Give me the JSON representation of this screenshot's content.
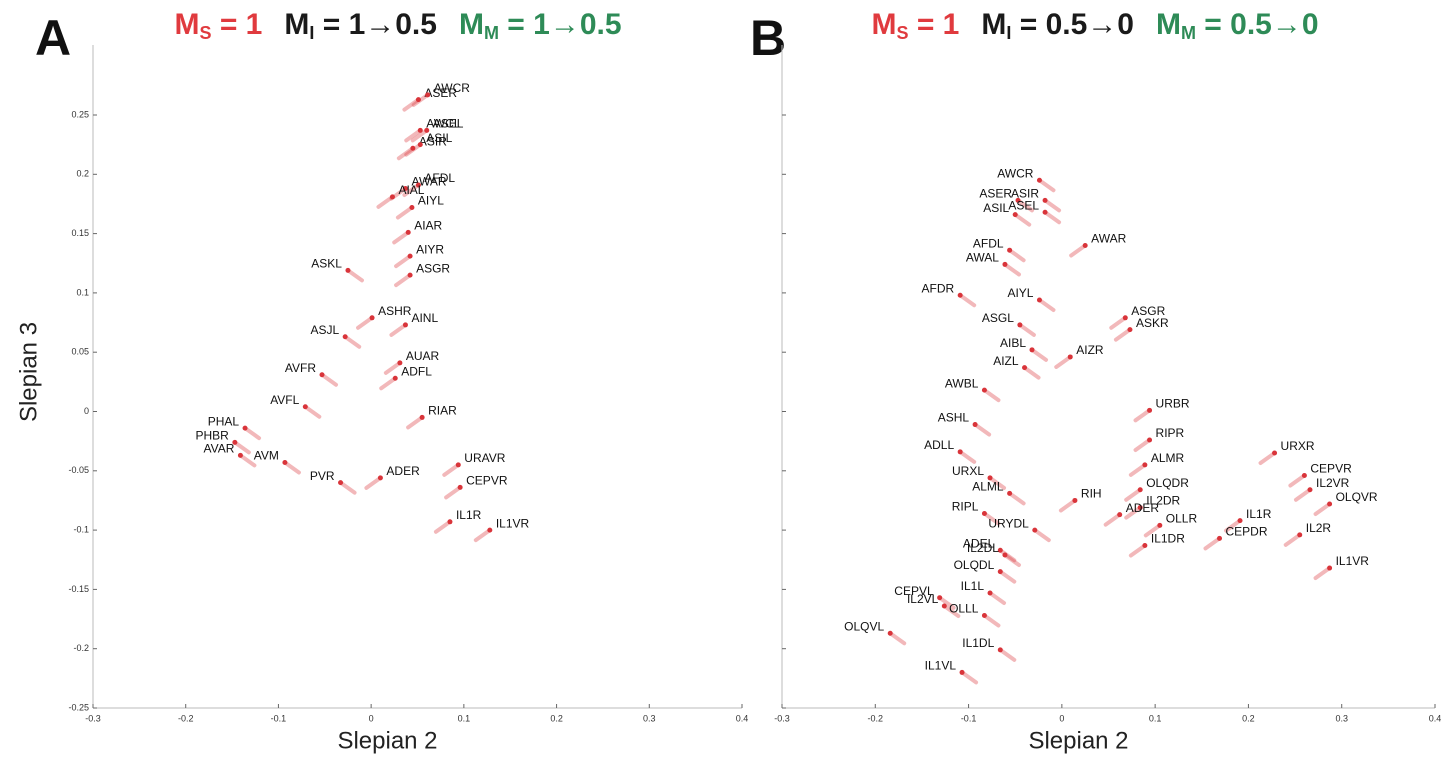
{
  "chart_data": [
    {
      "type": "scatter",
      "panel_label": "A",
      "title": [
        {
          "text": "M",
          "sub": "S",
          "rest": " = 1",
          "color": "#e03a3e"
        },
        {
          "text": "M",
          "sub": "I",
          "rest": " = 1→0.5",
          "color": "#1a1a1a"
        },
        {
          "text": "M",
          "sub": "M",
          "rest": " = 1→0.5",
          "color": "#2e8b57"
        }
      ],
      "xlabel": "Slepian 2",
      "ylabel": "Slepian 3",
      "xlim": [
        -0.3,
        0.4
      ],
      "ylim": [
        -0.25,
        0.25
      ],
      "xticks": [
        -0.3,
        -0.2,
        -0.1,
        0,
        0.1,
        0.2,
        0.3,
        0.4
      ],
      "yticks": [
        -0.25,
        -0.2,
        -0.15,
        -0.1,
        -0.05,
        0,
        0.05,
        0.1,
        0.15,
        0.2,
        0.25
      ],
      "show_ytick_labels": true,
      "color": "#d9343a",
      "labels": [
        "ASER",
        "AWCR",
        "AWCL",
        "ASEL",
        "ASIR",
        "ASIL",
        "AWAR",
        "AFDL",
        "AIAL",
        "AIYL",
        "AIAR",
        "ASKL",
        "AIYR",
        "ASGR",
        "ASHR",
        "AINL",
        "ASJL",
        "AUAR",
        "ADFL",
        "AVFR",
        "AVFL",
        "RIAR",
        "PHAL",
        "PHBR",
        "AVAR",
        "AVM",
        "PVR",
        "ADER",
        "URAVR",
        "CEPVR",
        "IL1R",
        "IL1VR"
      ],
      "x": [
        0.051,
        0.061,
        0.053,
        0.06,
        0.045,
        0.053,
        0.037,
        0.051,
        0.023,
        0.044,
        0.04,
        -0.025,
        0.042,
        0.042,
        0.001,
        0.037,
        -0.028,
        0.031,
        0.026,
        -0.053,
        -0.071,
        0.055,
        -0.136,
        -0.147,
        -0.141,
        -0.093,
        -0.033,
        0.01,
        0.094,
        0.096,
        0.085,
        0.128
      ],
      "y": [
        0.263,
        0.267,
        0.237,
        0.237,
        0.222,
        0.225,
        0.188,
        0.191,
        0.181,
        0.172,
        0.151,
        0.119,
        0.131,
        0.115,
        0.079,
        0.073,
        0.063,
        0.041,
        0.028,
        0.031,
        0.004,
        -0.005,
        -0.014,
        -0.026,
        -0.037,
        -0.043,
        -0.06,
        -0.056,
        -0.045,
        -0.064,
        -0.093,
        -0.1
      ]
    },
    {
      "type": "scatter",
      "panel_label": "B",
      "title": [
        {
          "text": "M",
          "sub": "S",
          "rest": " = 1",
          "color": "#e03a3e"
        },
        {
          "text": "M",
          "sub": "I",
          "rest": " = 0.5→0",
          "color": "#1a1a1a"
        },
        {
          "text": "M",
          "sub": "M",
          "rest": " = 0.5→0",
          "color": "#2e8b57"
        }
      ],
      "xlabel": "Slepian 2",
      "xlim": [
        -0.3,
        0.4
      ],
      "ylim": [
        -0.25,
        0.25
      ],
      "xticks": [
        -0.3,
        -0.2,
        -0.1,
        0,
        0.1,
        0.2,
        0.3,
        0.4
      ],
      "yticks": [
        -0.25,
        -0.2,
        -0.15,
        -0.1,
        -0.05,
        0,
        0.05,
        0.1,
        0.15,
        0.2,
        0.25
      ],
      "show_ytick_labels": false,
      "color": "#d9343a",
      "labels": [
        "AWCR",
        "ASER",
        "ASIR",
        "ASIL",
        "ASEL",
        "AWAR",
        "AFDL",
        "AWAL",
        "AFDR",
        "AIYL",
        "ASGR",
        "ASKR",
        "ASGL",
        "AIBL",
        "AIZR",
        "AIZL",
        "AWBL",
        "ASHL",
        "URBR",
        "RIPR",
        "ADLL",
        "URXR",
        "CEPVR",
        "ALMR",
        "URXL",
        "ALML",
        "IL2VR",
        "OLQDR",
        "RIH",
        "RIPL",
        "IL2DR",
        "ADER",
        "OLQVR",
        "OLLR",
        "IL1R",
        "URYDL",
        "IL2R",
        "IL1DR",
        "CEPDR",
        "ADEL",
        "IL2DL",
        "IL1VR",
        "OLQDL",
        "CEPVL",
        "IL1L",
        "IL2VL",
        "OLLL",
        "OLQVL",
        "IL1DL",
        "IL1VL"
      ],
      "x": [
        -0.024,
        -0.047,
        -0.018,
        -0.05,
        -0.018,
        0.025,
        -0.056,
        -0.061,
        -0.109,
        -0.024,
        0.068,
        0.073,
        -0.045,
        -0.032,
        0.009,
        -0.04,
        -0.083,
        -0.093,
        0.094,
        0.094,
        -0.109,
        0.228,
        0.26,
        0.089,
        -0.077,
        -0.056,
        0.266,
        0.084,
        0.014,
        -0.083,
        0.084,
        0.062,
        0.287,
        0.105,
        0.191,
        -0.029,
        0.255,
        0.089,
        0.169,
        -0.066,
        -0.061,
        0.287,
        -0.066,
        -0.131,
        -0.077,
        -0.126,
        -0.083,
        -0.184,
        -0.066,
        -0.107
      ],
      "y": [
        0.195,
        0.178,
        0.178,
        0.166,
        0.168,
        0.14,
        0.136,
        0.124,
        0.098,
        0.094,
        0.079,
        0.069,
        0.073,
        0.052,
        0.046,
        0.037,
        0.018,
        -0.011,
        0.001,
        -0.024,
        -0.034,
        -0.035,
        -0.054,
        -0.045,
        -0.056,
        -0.069,
        -0.066,
        -0.066,
        -0.075,
        -0.086,
        -0.081,
        -0.087,
        -0.078,
        -0.096,
        -0.092,
        -0.1,
        -0.104,
        -0.113,
        -0.107,
        -0.117,
        -0.121,
        -0.132,
        -0.135,
        -0.157,
        -0.153,
        -0.164,
        -0.172,
        -0.187,
        -0.201,
        -0.22
      ]
    }
  ]
}
